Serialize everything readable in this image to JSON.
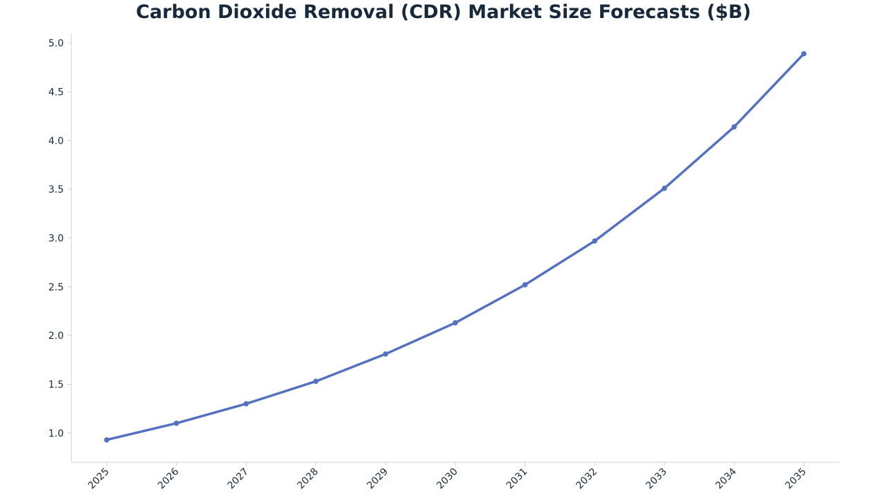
{
  "chart_data": {
    "type": "line",
    "title": "Carbon Dioxide Removal (CDR) Market Size Forecasts ($B)",
    "xlabel": "",
    "ylabel": "",
    "categories": [
      "2025",
      "2026",
      "2027",
      "2028",
      "2029",
      "2030",
      "2031",
      "2032",
      "2033",
      "2034",
      "2035"
    ],
    "series": [
      {
        "values": [
          0.93,
          1.1,
          1.3,
          1.53,
          1.81,
          2.13,
          2.52,
          2.97,
          3.51,
          4.14,
          4.89
        ]
      }
    ],
    "ylim": [
      0.7,
      5.1
    ],
    "yticks": [
      1.0,
      1.5,
      2.0,
      2.5,
      3.0,
      3.5,
      4.0,
      4.5,
      5.0
    ],
    "ytick_labels": [
      "1.0",
      "1.5",
      "2.0",
      "2.5",
      "3.0",
      "3.5",
      "4.0",
      "4.5",
      "5.0"
    ],
    "grid": false,
    "legend": "none",
    "colors": {
      "line": "#5470c1",
      "title": "#17293a",
      "axis": "#cfcfcf",
      "tick_text": "#17293a"
    }
  }
}
